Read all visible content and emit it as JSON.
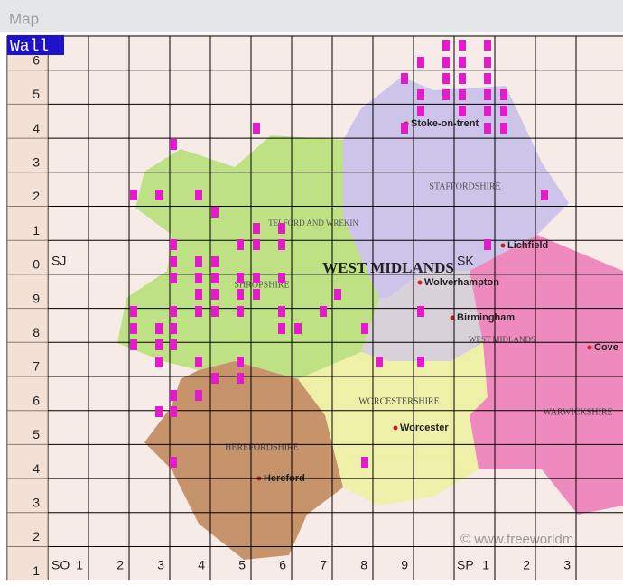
{
  "window": {
    "title": "Map"
  },
  "layer": {
    "label": "Wall"
  },
  "grid": {
    "row_labels": [
      "6",
      "5",
      "4",
      "3",
      "2",
      "1",
      "0",
      "9",
      "8",
      "7",
      "6",
      "5",
      "4",
      "3",
      "2",
      "1"
    ],
    "column_labels": [
      "1",
      "2",
      "3",
      "4",
      "5",
      "6",
      "7",
      "8",
      "9",
      "1",
      "2",
      "3"
    ],
    "square_labels": [
      "SJ",
      "SO",
      "SP",
      "SK"
    ]
  },
  "map": {
    "regions": [
      "WEST MIDLANDS",
      "STAFFORDSHIRE",
      "SHROPSHIRE",
      "TELFORD AND WREKIN",
      "HEREFORDSHIRE",
      "WORCESTERSHIRE",
      "WARWICKSHIRE",
      "WEST MIDLANDS"
    ],
    "places": [
      "Stoke-on-trent",
      "Lichfield",
      "Wolverhampton",
      "Birmingham",
      "Worcester",
      "Hereford",
      "Cove"
    ],
    "credit": "© www.freeworldm"
  }
}
